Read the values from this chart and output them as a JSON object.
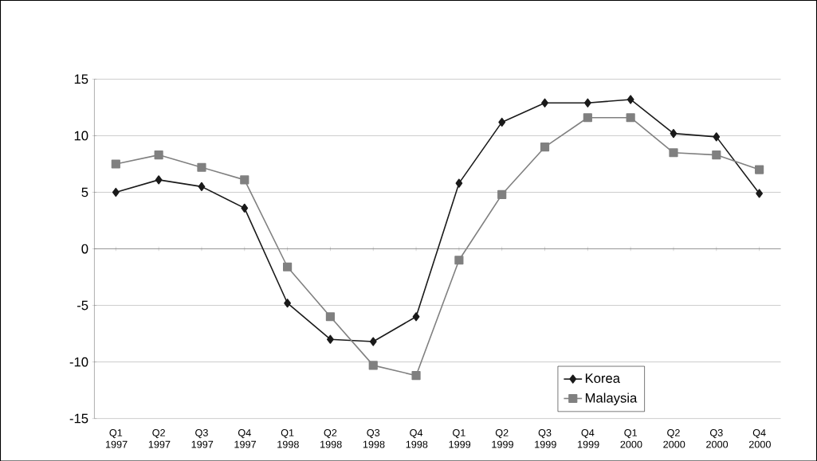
{
  "chart_data": {
    "type": "line",
    "categories": [
      "Q1 1997",
      "Q2 1997",
      "Q3 1997",
      "Q4 1997",
      "Q1 1998",
      "Q2 1998",
      "Q3 1998",
      "Q4 1998",
      "Q1 1999",
      "Q2 1999",
      "Q3 1999",
      "Q4 1999",
      "Q1 2000",
      "Q2 2000",
      "Q3 2000",
      "Q4 2000"
    ],
    "series": [
      {
        "name": "Korea",
        "color": "#1a1a1a",
        "marker": "diamond",
        "values": [
          5.0,
          6.1,
          5.5,
          3.6,
          -4.8,
          -8.0,
          -8.2,
          -6.0,
          5.8,
          11.2,
          12.9,
          12.9,
          13.2,
          10.2,
          9.9,
          4.9
        ]
      },
      {
        "name": "Malaysia",
        "color": "#808080",
        "marker": "square",
        "values": [
          7.5,
          8.3,
          7.2,
          6.1,
          -1.6,
          -6.0,
          -10.3,
          -11.2,
          -1.0,
          4.8,
          9.0,
          11.6,
          11.6,
          8.5,
          8.3,
          7.0
        ]
      }
    ],
    "ylim": [
      -15,
      15
    ],
    "yticks": [
      -15,
      -10,
      -5,
      0,
      5,
      10,
      15
    ],
    "grid": "y",
    "legend": "bottom right"
  }
}
